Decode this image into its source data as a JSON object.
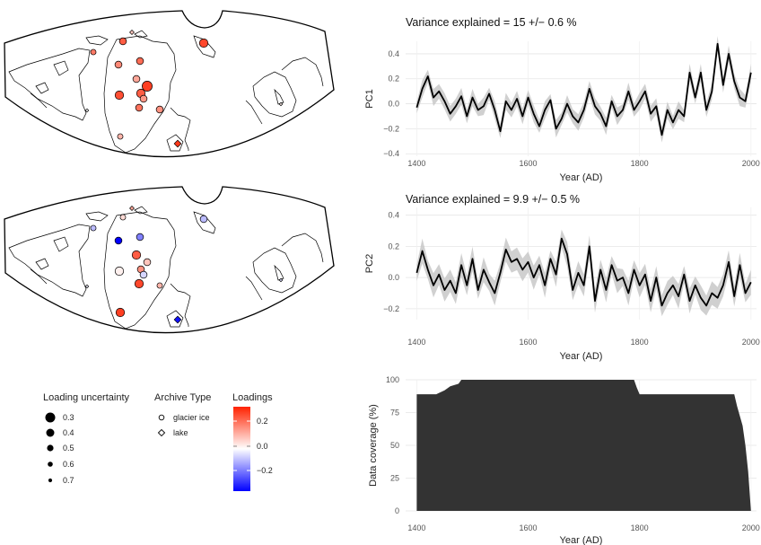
{
  "maps": [
    {
      "id": "pc1-map",
      "sites": [
        {
          "type": "glacier ice",
          "loading": 0.22,
          "uncertainty": 0.5
        },
        {
          "type": "lake",
          "loading": 0.08,
          "uncertainty": 0.6
        },
        {
          "type": "glacier ice",
          "loading": 0.25,
          "uncertainty": 0.4
        },
        {
          "type": "glacier ice",
          "loading": 0.18,
          "uncertainty": 0.6
        },
        {
          "type": "glacier ice",
          "loading": 0.16,
          "uncertainty": 0.5
        },
        {
          "type": "glacier ice",
          "loading": 0.2,
          "uncertainty": 0.5
        },
        {
          "type": "glacier ice",
          "loading": 0.24,
          "uncertainty": 0.4
        },
        {
          "type": "glacier ice",
          "loading": 0.26,
          "uncertainty": 0.3
        },
        {
          "type": "glacier ice",
          "loading": 0.22,
          "uncertainty": 0.4
        },
        {
          "type": "glacier ice",
          "loading": 0.19,
          "uncertainty": 0.5
        },
        {
          "type": "glacier ice",
          "loading": 0.12,
          "uncertainty": 0.5
        },
        {
          "type": "glacier ice",
          "loading": 0.15,
          "uncertainty": 0.5
        },
        {
          "type": "glacier ice",
          "loading": 0.1,
          "uncertainty": 0.6
        },
        {
          "type": "glacier ice",
          "loading": 0.14,
          "uncertainty": 0.5
        },
        {
          "type": "lake",
          "loading": 0.27,
          "uncertainty": 0.4
        },
        {
          "type": "lake",
          "loading": 0.0,
          "uncertainty": 0.7
        },
        {
          "type": "lake",
          "loading": 0.02,
          "uncertainty": 0.7
        }
      ]
    },
    {
      "id": "pc2-map",
      "sites": [
        {
          "type": "glacier ice",
          "loading": 0.05,
          "uncertainty": 0.6
        },
        {
          "type": "lake",
          "loading": 0.12,
          "uncertainty": 0.6
        },
        {
          "type": "glacier ice",
          "loading": -0.08,
          "uncertainty": 0.5
        },
        {
          "type": "glacier ice",
          "loading": -0.08,
          "uncertainty": 0.6
        },
        {
          "type": "glacier ice",
          "loading": -0.3,
          "uncertainty": 0.5
        },
        {
          "type": "glacier ice",
          "loading": -0.15,
          "uncertainty": 0.5
        },
        {
          "type": "glacier ice",
          "loading": 0.02,
          "uncertainty": 0.4
        },
        {
          "type": "glacier ice",
          "loading": 0.08,
          "uncertainty": 0.5
        },
        {
          "type": "glacier ice",
          "loading": 0.15,
          "uncertainty": 0.5
        },
        {
          "type": "glacier ice",
          "loading": 0.25,
          "uncertainty": 0.4
        },
        {
          "type": "glacier ice",
          "loading": 0.22,
          "uncertainty": 0.4
        },
        {
          "type": "glacier ice",
          "loading": 0.1,
          "uncertainty": 0.6
        },
        {
          "type": "glacier ice",
          "loading": 0.26,
          "uncertainty": 0.4
        },
        {
          "type": "glacier ice",
          "loading": -0.05,
          "uncertainty": 0.5
        },
        {
          "type": "lake",
          "loading": -0.28,
          "uncertainty": 0.4
        },
        {
          "type": "lake",
          "loading": -0.02,
          "uncertainty": 0.7
        },
        {
          "type": "lake",
          "loading": -0.04,
          "uncertainty": 0.7
        }
      ]
    }
  ],
  "legends": {
    "uncertainty": {
      "title": "Loading uncertainty",
      "items": [
        "0.3",
        "0.4",
        "0.5",
        "0.6",
        "0.7"
      ]
    },
    "archive": {
      "title": "Archive Type",
      "items": [
        "glacier ice",
        "lake"
      ]
    },
    "loadings": {
      "title": "Loadings",
      "ticks": [
        "0.2",
        "0.0",
        "−0.2"
      ],
      "low_color": "#0000ff",
      "mid_color": "#ffffff",
      "high_color": "#ff2200"
    }
  },
  "chart_data": [
    {
      "type": "line",
      "title": "Variance explained = 15 +/− 0.6 %",
      "xlabel": "Year (AD)",
      "ylabel": "PC1",
      "xlim": [
        1380,
        2010
      ],
      "ylim": [
        -0.42,
        0.5
      ],
      "xticks": [
        "1400",
        "1600",
        "1800",
        "2000"
      ],
      "yticks": [
        "0.4",
        "0.2",
        "0.0",
        "−0.2",
        "−0.4"
      ],
      "ytick_values": [
        0.4,
        0.2,
        0.0,
        -0.2,
        -0.4
      ],
      "band_halfwidth": 0.07,
      "x": [
        1400,
        1410,
        1420,
        1430,
        1440,
        1450,
        1460,
        1470,
        1480,
        1490,
        1500,
        1510,
        1520,
        1530,
        1540,
        1550,
        1560,
        1570,
        1580,
        1590,
        1600,
        1610,
        1620,
        1630,
        1640,
        1650,
        1660,
        1670,
        1680,
        1690,
        1700,
        1710,
        1720,
        1730,
        1740,
        1750,
        1760,
        1770,
        1780,
        1790,
        1800,
        1810,
        1820,
        1830,
        1840,
        1850,
        1860,
        1870,
        1880,
        1890,
        1900,
        1910,
        1920,
        1930,
        1940,
        1950,
        1960,
        1970,
        1980,
        1990,
        2000
      ],
      "y": [
        -0.03,
        0.12,
        0.22,
        0.05,
        0.1,
        0.02,
        -0.08,
        -0.02,
        0.06,
        -0.1,
        0.05,
        -0.05,
        -0.02,
        0.08,
        -0.05,
        -0.22,
        0.02,
        -0.05,
        0.04,
        -0.1,
        0.05,
        -0.08,
        -0.18,
        -0.05,
        0.03,
        -0.2,
        -0.12,
        0.0,
        -0.1,
        -0.15,
        -0.05,
        0.12,
        -0.02,
        -0.08,
        -0.18,
        0.02,
        -0.1,
        -0.05,
        0.1,
        -0.05,
        0.02,
        0.1,
        -0.08,
        -0.02,
        -0.25,
        -0.05,
        -0.15,
        -0.05,
        -0.1,
        0.25,
        0.05,
        0.25,
        -0.05,
        0.1,
        0.48,
        0.15,
        0.4,
        0.18,
        0.05,
        0.02,
        0.25
      ]
    },
    {
      "type": "line",
      "title": "Variance explained = 9.9 +/− 0.5 %",
      "xlabel": "Year (AD)",
      "ylabel": "PC2",
      "xlim": [
        1380,
        2010
      ],
      "ylim": [
        -0.27,
        0.45
      ],
      "xticks": [
        "1400",
        "1600",
        "1800",
        "2000"
      ],
      "yticks": [
        "0.4",
        "0.2",
        "0.0",
        "−0.2"
      ],
      "ytick_values": [
        0.4,
        0.2,
        0.0,
        -0.2
      ],
      "band_halfwidth": 0.08,
      "x": [
        1400,
        1410,
        1420,
        1430,
        1440,
        1450,
        1460,
        1470,
        1480,
        1490,
        1500,
        1510,
        1520,
        1530,
        1540,
        1550,
        1560,
        1570,
        1580,
        1590,
        1600,
        1610,
        1620,
        1630,
        1640,
        1650,
        1660,
        1670,
        1680,
        1690,
        1700,
        1710,
        1720,
        1730,
        1740,
        1750,
        1760,
        1770,
        1780,
        1790,
        1800,
        1810,
        1820,
        1830,
        1840,
        1850,
        1860,
        1870,
        1880,
        1890,
        1900,
        1910,
        1920,
        1930,
        1940,
        1950,
        1960,
        1970,
        1980,
        1990,
        2000
      ],
      "y": [
        0.03,
        0.17,
        0.05,
        -0.05,
        0.02,
        -0.08,
        -0.02,
        -0.1,
        0.08,
        -0.05,
        0.12,
        -0.08,
        0.05,
        -0.03,
        -0.1,
        0.03,
        0.18,
        0.1,
        0.12,
        0.05,
        0.1,
        0.0,
        0.08,
        -0.05,
        0.12,
        0.02,
        0.25,
        0.15,
        -0.08,
        0.03,
        -0.05,
        0.2,
        -0.15,
        0.05,
        -0.08,
        0.08,
        -0.02,
        0.0,
        -0.1,
        0.05,
        -0.05,
        0.02,
        -0.15,
        0.0,
        -0.18,
        -0.1,
        -0.05,
        -0.12,
        0.02,
        -0.15,
        -0.05,
        -0.13,
        -0.18,
        -0.1,
        -0.13,
        -0.05,
        0.1,
        -0.12,
        0.08,
        -0.1,
        -0.03
      ]
    },
    {
      "type": "area",
      "title": "",
      "xlabel": "Year (AD)",
      "ylabel": "Data coverage (%)",
      "xlim": [
        1380,
        2010
      ],
      "ylim": [
        0,
        100
      ],
      "xticks": [
        "1400",
        "1600",
        "1800",
        "2000"
      ],
      "yticks": [
        "100",
        "75",
        "50",
        "25",
        "0"
      ],
      "ytick_values": [
        100,
        75,
        50,
        25,
        0
      ],
      "color": "#333333",
      "x": [
        1400,
        1435,
        1440,
        1450,
        1460,
        1475,
        1480,
        1500,
        1790,
        1795,
        1800,
        1970,
        1975,
        1985,
        1990,
        1995,
        2000
      ],
      "y": [
        89,
        89,
        90,
        92,
        95,
        97,
        100,
        100,
        100,
        94,
        89,
        89,
        80,
        65,
        50,
        30,
        0
      ]
    }
  ]
}
